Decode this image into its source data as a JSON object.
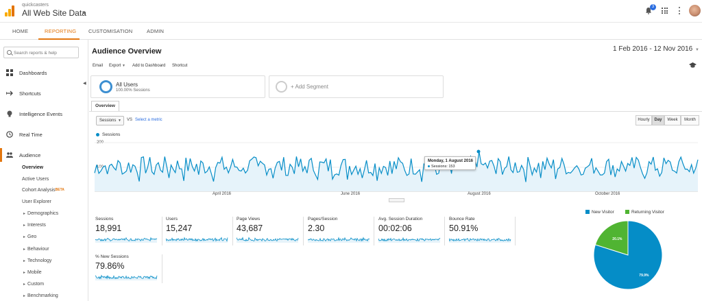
{
  "header": {
    "account_name": "quickcasters",
    "property_name": "All Web Site Data",
    "notification_count": "3"
  },
  "nav_tabs": [
    "HOME",
    "REPORTING",
    "CUSTOMISATION",
    "ADMIN"
  ],
  "sidebar": {
    "search_placeholder": "Search reports & help",
    "sections": [
      {
        "label": "Dashboards",
        "icon": "grid-icon"
      },
      {
        "label": "Shortcuts",
        "icon": "shortcut-arrow-icon"
      },
      {
        "label": "Intelligence Events",
        "icon": "lightbulb-icon"
      },
      {
        "label": "Real Time",
        "icon": "clock-icon"
      },
      {
        "label": "Audience",
        "icon": "people-icon"
      }
    ],
    "audience_items": [
      "Overview",
      "Active Users",
      "Cohort Analysis",
      "User Explorer"
    ],
    "beta_label": "BETA",
    "audience_groups": [
      "Demographics",
      "Interests",
      "Geo",
      "Behaviour",
      "Technology",
      "Mobile",
      "Custom",
      "Benchmarking"
    ]
  },
  "main": {
    "title": "Audience Overview",
    "date_range": "1 Feb 2016 - 12 Nov 2016",
    "actions": [
      "Email",
      "Export",
      "Add to Dashboard",
      "Shortcut"
    ],
    "segments": {
      "all_users_title": "All Users",
      "all_users_sub": "100.00% Sessions",
      "add_segment": "+ Add Segment"
    },
    "overview_tab": "Overview",
    "metric_selector": "Sessions",
    "vs": "VS",
    "select_metric": "Select a metric",
    "periods": [
      "Hourly",
      "Day",
      "Week",
      "Month"
    ],
    "active_period": "Day"
  },
  "chart_data": {
    "type": "area",
    "series": [
      {
        "name": "Sessions"
      }
    ],
    "y_ticks": [
      "200",
      "100"
    ],
    "ylim": [
      0,
      200
    ],
    "x_labels": [
      "April 2016",
      "June 2016",
      "August 2016",
      "October 2016"
    ],
    "accent_color": "#058dc7",
    "tooltip": {
      "date": "Monday, 1 August 2016",
      "value_label": "Sessions: 153"
    }
  },
  "metrics": [
    {
      "name": "Sessions",
      "value": "18,991"
    },
    {
      "name": "Users",
      "value": "15,247"
    },
    {
      "name": "Page Views",
      "value": "43,687"
    },
    {
      "name": "Pages/Session",
      "value": "2.30"
    },
    {
      "name": "Avg. Session Duration",
      "value": "00:02:06"
    },
    {
      "name": "Bounce Rate",
      "value": "50.91%"
    },
    {
      "name": "% New Sessions",
      "value": "79.86%"
    }
  ],
  "pie": {
    "legend": [
      {
        "name": "New Visitor",
        "color": "#058dc7"
      },
      {
        "name": "Returning Visitor",
        "color": "#50b432"
      }
    ],
    "slices": [
      {
        "name": "New Visitor",
        "value": 79.9,
        "label": "79.9%"
      },
      {
        "name": "Returning Visitor",
        "value": 20.1,
        "label": "20.1%"
      }
    ]
  }
}
